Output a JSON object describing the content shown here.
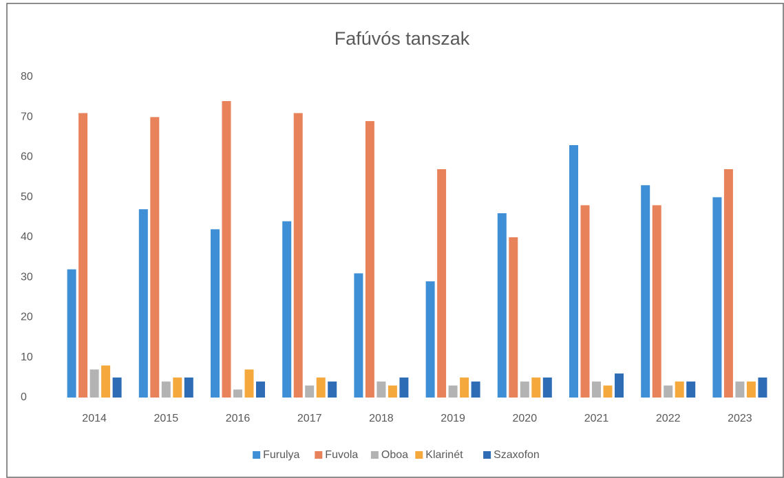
{
  "chart_data": {
    "type": "bar",
    "title": "Fafúvós tanszak",
    "categories": [
      "2014",
      "2015",
      "2016",
      "2017",
      "2018",
      "2019",
      "2020",
      "2021",
      "2022",
      "2023"
    ],
    "series": [
      {
        "name": "Furulya",
        "color": "#3f8fd6",
        "values": [
          32,
          47,
          42,
          44,
          31,
          29,
          46,
          63,
          53,
          50
        ]
      },
      {
        "name": "Fuvola",
        "color": "#e8825a",
        "values": [
          71,
          70,
          74,
          71,
          69,
          57,
          40,
          48,
          48,
          57
        ]
      },
      {
        "name": "Oboa",
        "color": "#b3b3b3",
        "values": [
          7,
          4,
          2,
          3,
          4,
          3,
          4,
          4,
          3,
          4
        ]
      },
      {
        "name": "Klarinét",
        "color": "#f5a83c",
        "values": [
          8,
          5,
          7,
          5,
          3,
          5,
          5,
          3,
          4,
          4
        ]
      },
      {
        "name": "Szaxofon",
        "color": "#2e6db5",
        "values": [
          5,
          5,
          4,
          4,
          5,
          4,
          5,
          6,
          4,
          5
        ]
      }
    ],
    "ylim": [
      0,
      80
    ],
    "yticks": [
      0,
      10,
      20,
      30,
      40,
      50,
      60,
      70,
      80
    ],
    "grid": false,
    "legend": "bottom"
  }
}
